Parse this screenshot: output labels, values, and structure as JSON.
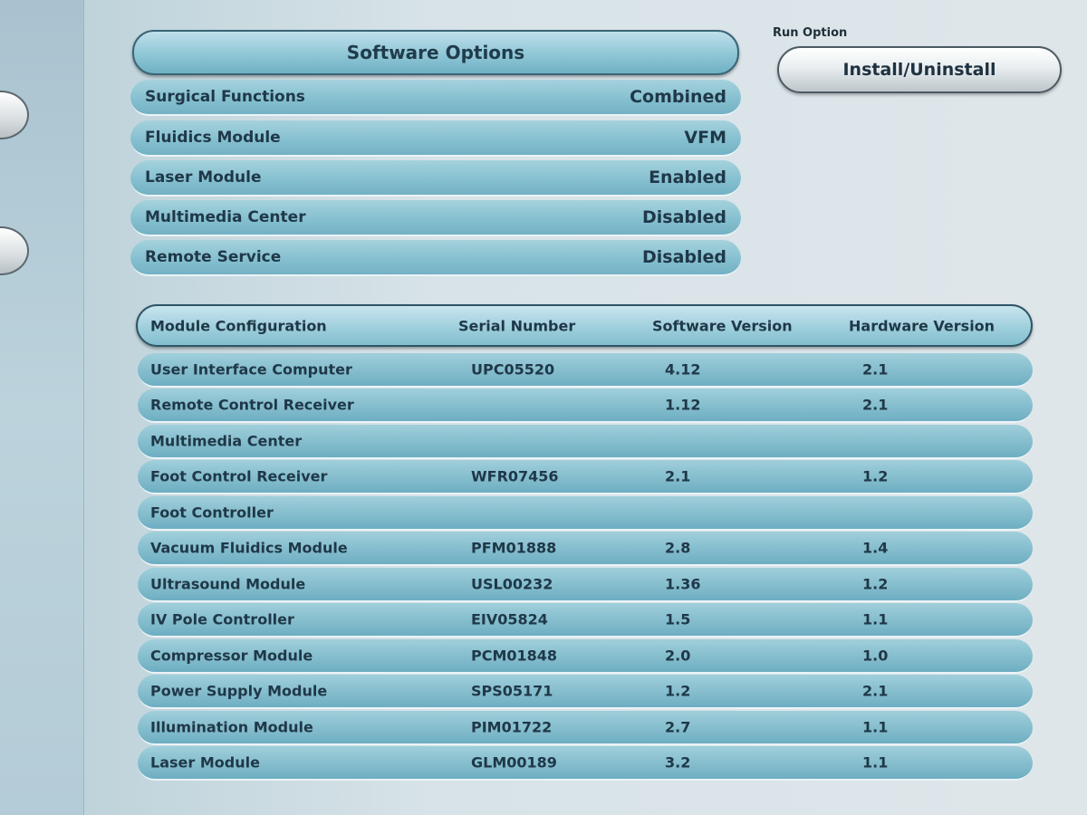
{
  "software_options": {
    "title": "Software Options",
    "rows": [
      {
        "label": "Surgical Functions",
        "value": "Combined"
      },
      {
        "label": "Fluidics Module",
        "value": "VFM"
      },
      {
        "label": "Laser Module",
        "value": "Enabled"
      },
      {
        "label": "Multimedia Center",
        "value": "Disabled"
      },
      {
        "label": "Remote Service",
        "value": "Disabled"
      }
    ]
  },
  "run_option": {
    "label": "Run Option",
    "button_label": "Install/Uninstall"
  },
  "module_configuration": {
    "headers": [
      "Module Configuration",
      "Serial Number",
      "Software Version",
      "Hardware Version"
    ],
    "rows": [
      {
        "module": "User Interface Computer",
        "serial": "UPC05520",
        "software": "4.12",
        "hardware": "2.1"
      },
      {
        "module": "Remote Control Receiver",
        "serial": "",
        "software": "1.12",
        "hardware": "2.1"
      },
      {
        "module": "Multimedia Center",
        "serial": "",
        "software": "",
        "hardware": ""
      },
      {
        "module": "Foot Control Receiver",
        "serial": "WFR07456",
        "software": "2.1",
        "hardware": "1.2"
      },
      {
        "module": "Foot Controller",
        "serial": "",
        "software": "",
        "hardware": ""
      },
      {
        "module": "Vacuum Fluidics Module",
        "serial": "PFM01888",
        "software": "2.8",
        "hardware": "1.4"
      },
      {
        "module": "Ultrasound Module",
        "serial": "USL00232",
        "software": "1.36",
        "hardware": "1.2"
      },
      {
        "module": "IV Pole Controller",
        "serial": "EIV05824",
        "software": "1.5",
        "hardware": "1.1"
      },
      {
        "module": "Compressor Module",
        "serial": "PCM01848",
        "software": "2.0",
        "hardware": "1.0"
      },
      {
        "module": "Power Supply Module",
        "serial": "SPS05171",
        "software": "1.2",
        "hardware": "2.1"
      },
      {
        "module": "Illumination Module",
        "serial": "PIM01722",
        "software": "2.7",
        "hardware": "1.1"
      },
      {
        "module": "Laser Module",
        "serial": "GLM00189",
        "software": "3.2",
        "hardware": "1.1"
      }
    ]
  }
}
